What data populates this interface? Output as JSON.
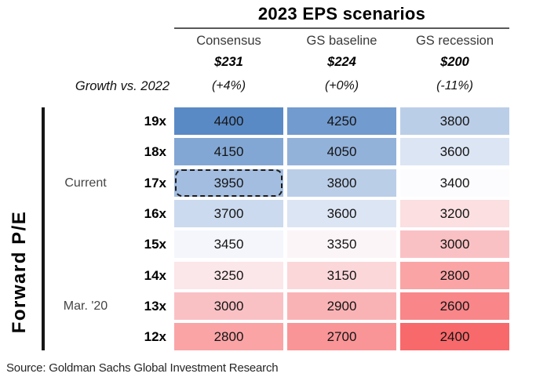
{
  "header": {
    "title": "2023 EPS scenarios",
    "growth_label": "Growth vs. 2022",
    "columns": [
      {
        "name": "Consensus",
        "eps": "$231",
        "growth": "(+4%)"
      },
      {
        "name": "GS baseline",
        "eps": "$224",
        "growth": "(+0%)"
      },
      {
        "name": "GS recession",
        "eps": "$200",
        "growth": "(-11%)"
      }
    ]
  },
  "axis": {
    "y_label": "Forward P/E",
    "annotations": [
      {
        "text": "Current",
        "row": "17x"
      },
      {
        "text": "Mar. '20",
        "row": "13x"
      }
    ]
  },
  "chart_data": {
    "type": "heatmap",
    "title": "2023 EPS scenarios",
    "ylabel": "Forward P/E",
    "columns": [
      "Consensus",
      "GS baseline",
      "GS recession"
    ],
    "column_eps": [
      "$231",
      "$224",
      "$200"
    ],
    "column_growth_vs_2022": [
      "(+4%)",
      "(+0%)",
      "(-11%)"
    ],
    "row_labels": [
      "19x",
      "18x",
      "17x",
      "16x",
      "15x",
      "14x",
      "13x",
      "12x"
    ],
    "values": [
      [
        4400,
        4250,
        3800
      ],
      [
        4150,
        4050,
        3600
      ],
      [
        3950,
        3800,
        3400
      ],
      [
        3700,
        3600,
        3200
      ],
      [
        3450,
        3350,
        3000
      ],
      [
        3250,
        3150,
        2800
      ],
      [
        3000,
        2900,
        2600
      ],
      [
        2800,
        2700,
        2400
      ]
    ],
    "cell_colors": [
      [
        "#5A8AC6",
        "#729BCF",
        "#BBCEE8"
      ],
      [
        "#83A7D4",
        "#93B2DA",
        "#DCE5F4"
      ],
      [
        "#A3BDE0",
        "#BBCEE8",
        "#FCFCFF"
      ],
      [
        "#CBDAEE",
        "#DCE5F4",
        "#FBDFE1"
      ],
      [
        "#F4F6FC",
        "#FCF5F8",
        "#FAC1C4"
      ],
      [
        "#FBE6E9",
        "#FBD7DA",
        "#FAA4A6"
      ],
      [
        "#FAC1C4",
        "#FAB3B5",
        "#F98689"
      ],
      [
        "#FAA4A6",
        "#F99597",
        "#F8696B"
      ]
    ],
    "color_scale": {
      "min": 2400,
      "mid": 3400,
      "max": 4400,
      "min_color": "#F8696B",
      "mid_color": "#FCFCFF",
      "max_color": "#5A8AC6"
    },
    "highlight": {
      "row_index": 2,
      "col_index": 0,
      "row": "17x",
      "column": "Consensus",
      "value": 3950,
      "style": "dashed-outline"
    }
  },
  "source": "Source: Goldman Sachs Global Investment Research"
}
